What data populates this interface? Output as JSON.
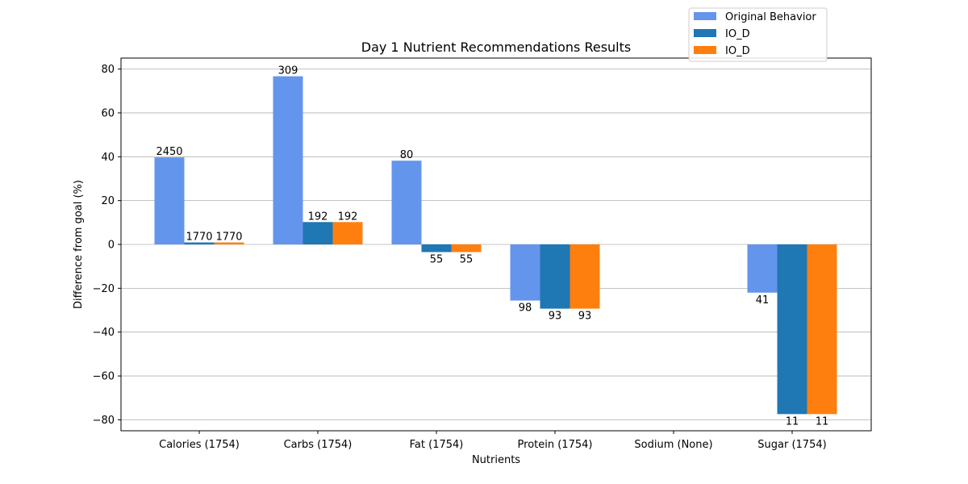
{
  "chart_data": {
    "type": "bar",
    "title": "Day 1 Nutrient Recommendations Results",
    "xlabel": "Nutrients",
    "ylabel": "Difference from goal (%)",
    "ylim": [
      -85,
      85
    ],
    "yticks": [
      -80,
      -60,
      -40,
      -20,
      0,
      20,
      40,
      60,
      80
    ],
    "grid": "y",
    "legend_position": "top-right",
    "categories": [
      "Calories (1754)",
      "Carbs (1754)",
      "Fat (1754)",
      "Protein (1754)",
      "Sodium (None)",
      "Sugar (1754)"
    ],
    "series": [
      {
        "name": "Original Behavior",
        "color": "#6495ed",
        "values": [
          39.7,
          76.7,
          38.2,
          -25.6,
          null,
          -22.0
        ],
        "labels": [
          "2450",
          "309",
          "80",
          "98",
          "",
          "41"
        ]
      },
      {
        "name": "IO_D",
        "color": "#1f77b4",
        "values": [
          0.9,
          10.2,
          -3.5,
          -29.3,
          null,
          -77.4
        ],
        "labels": [
          "1770",
          "192",
          "55",
          "93",
          "",
          "11"
        ]
      },
      {
        "name": "IO_D",
        "color": "#ff7f0e",
        "values": [
          0.9,
          10.2,
          -3.5,
          -29.3,
          null,
          -77.4
        ],
        "labels": [
          "1770",
          "192",
          "55",
          "93",
          "",
          "11"
        ]
      }
    ]
  }
}
